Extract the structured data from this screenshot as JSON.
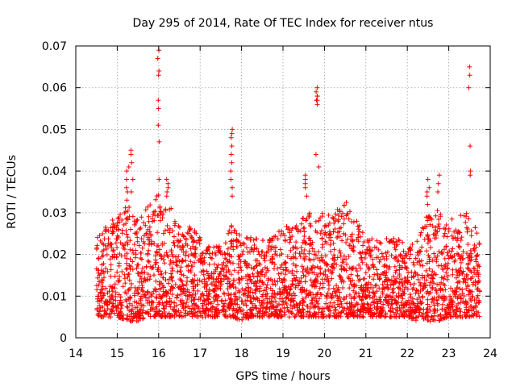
{
  "chart_data": {
    "type": "scatter",
    "title": "Day 295 of 2014, Rate Of TEC Index for receiver ntus",
    "xlabel": "GPS time / hours",
    "ylabel": "ROTI / TECUs",
    "xlim": [
      14,
      24
    ],
    "ylim": [
      0,
      0.07
    ],
    "xticks": [
      14,
      15,
      16,
      17,
      18,
      19,
      20,
      21,
      22,
      23,
      24
    ],
    "xtick_labels": [
      "14",
      "15",
      "16",
      "17",
      "18",
      "19",
      "20",
      "21",
      "22",
      "23",
      "24"
    ],
    "yticks": [
      0,
      0.01,
      0.02,
      0.03,
      0.04,
      0.05,
      0.06,
      0.07
    ],
    "ytick_labels": [
      "0",
      "0.01",
      "0.02",
      "0.03",
      "0.04",
      "0.05",
      "0.06",
      "0.07"
    ],
    "grid": true,
    "marker": "plus",
    "color": "#ff0000",
    "series": [
      {
        "name": "ROTI",
        "envelope": {
          "x": [
            14.5,
            14.75,
            15.0,
            15.25,
            15.5,
            15.75,
            16.0,
            16.25,
            16.5,
            16.75,
            17.0,
            17.25,
            17.5,
            17.75,
            18.0,
            18.25,
            18.5,
            18.75,
            19.0,
            19.25,
            19.5,
            19.75,
            20.0,
            20.25,
            20.5,
            20.75,
            21.0,
            21.25,
            21.5,
            21.75,
            22.0,
            22.25,
            22.5,
            22.75,
            23.0,
            23.25,
            23.5,
            23.75
          ],
          "low": [
            0.005,
            0.005,
            0.005,
            0.004,
            0.004,
            0.005,
            0.005,
            0.005,
            0.005,
            0.005,
            0.005,
            0.005,
            0.005,
            0.005,
            0.004,
            0.005,
            0.005,
            0.005,
            0.005,
            0.005,
            0.005,
            0.005,
            0.005,
            0.005,
            0.005,
            0.005,
            0.005,
            0.005,
            0.005,
            0.005,
            0.005,
            0.004,
            0.004,
            0.004,
            0.005,
            0.005,
            0.005,
            0.005
          ],
          "high": [
            0.025,
            0.028,
            0.03,
            0.032,
            0.03,
            0.032,
            0.035,
            0.032,
            0.028,
            0.027,
            0.025,
            0.022,
            0.022,
            0.027,
            0.025,
            0.024,
            0.024,
            0.024,
            0.027,
            0.027,
            0.03,
            0.03,
            0.03,
            0.03,
            0.033,
            0.029,
            0.024,
            0.024,
            0.024,
            0.024,
            0.022,
            0.024,
            0.03,
            0.032,
            0.028,
            0.03,
            0.03,
            0.025
          ]
        },
        "spikes": [
          {
            "x": 15.25,
            "values": [
              0.033,
              0.035,
              0.036,
              0.038,
              0.04,
              0.041
            ]
          },
          {
            "x": 15.35,
            "values": [
              0.035,
              0.038,
              0.042,
              0.044,
              0.045
            ]
          },
          {
            "x": 16.0,
            "values": [
              0.038,
              0.047,
              0.051,
              0.055,
              0.057,
              0.063,
              0.064,
              0.067,
              0.069
            ]
          },
          {
            "x": 16.2,
            "values": [
              0.034,
              0.035,
              0.036,
              0.037,
              0.038
            ]
          },
          {
            "x": 17.75,
            "values": [
              0.034,
              0.036,
              0.038,
              0.04,
              0.042,
              0.044,
              0.046,
              0.048,
              0.049,
              0.05
            ]
          },
          {
            "x": 19.55,
            "values": [
              0.034,
              0.036,
              0.037,
              0.038,
              0.039
            ]
          },
          {
            "x": 19.8,
            "values": [
              0.044,
              0.057,
              0.058,
              0.059,
              0.06
            ]
          },
          {
            "x": 19.85,
            "values": [
              0.041,
              0.056,
              0.057,
              0.058
            ]
          },
          {
            "x": 22.5,
            "values": [
              0.032,
              0.034,
              0.035,
              0.036,
              0.038
            ]
          },
          {
            "x": 22.75,
            "values": [
              0.035,
              0.037,
              0.039
            ]
          },
          {
            "x": 23.5,
            "values": [
              0.039,
              0.04,
              0.046,
              0.06,
              0.063,
              0.065
            ]
          }
        ]
      }
    ]
  }
}
